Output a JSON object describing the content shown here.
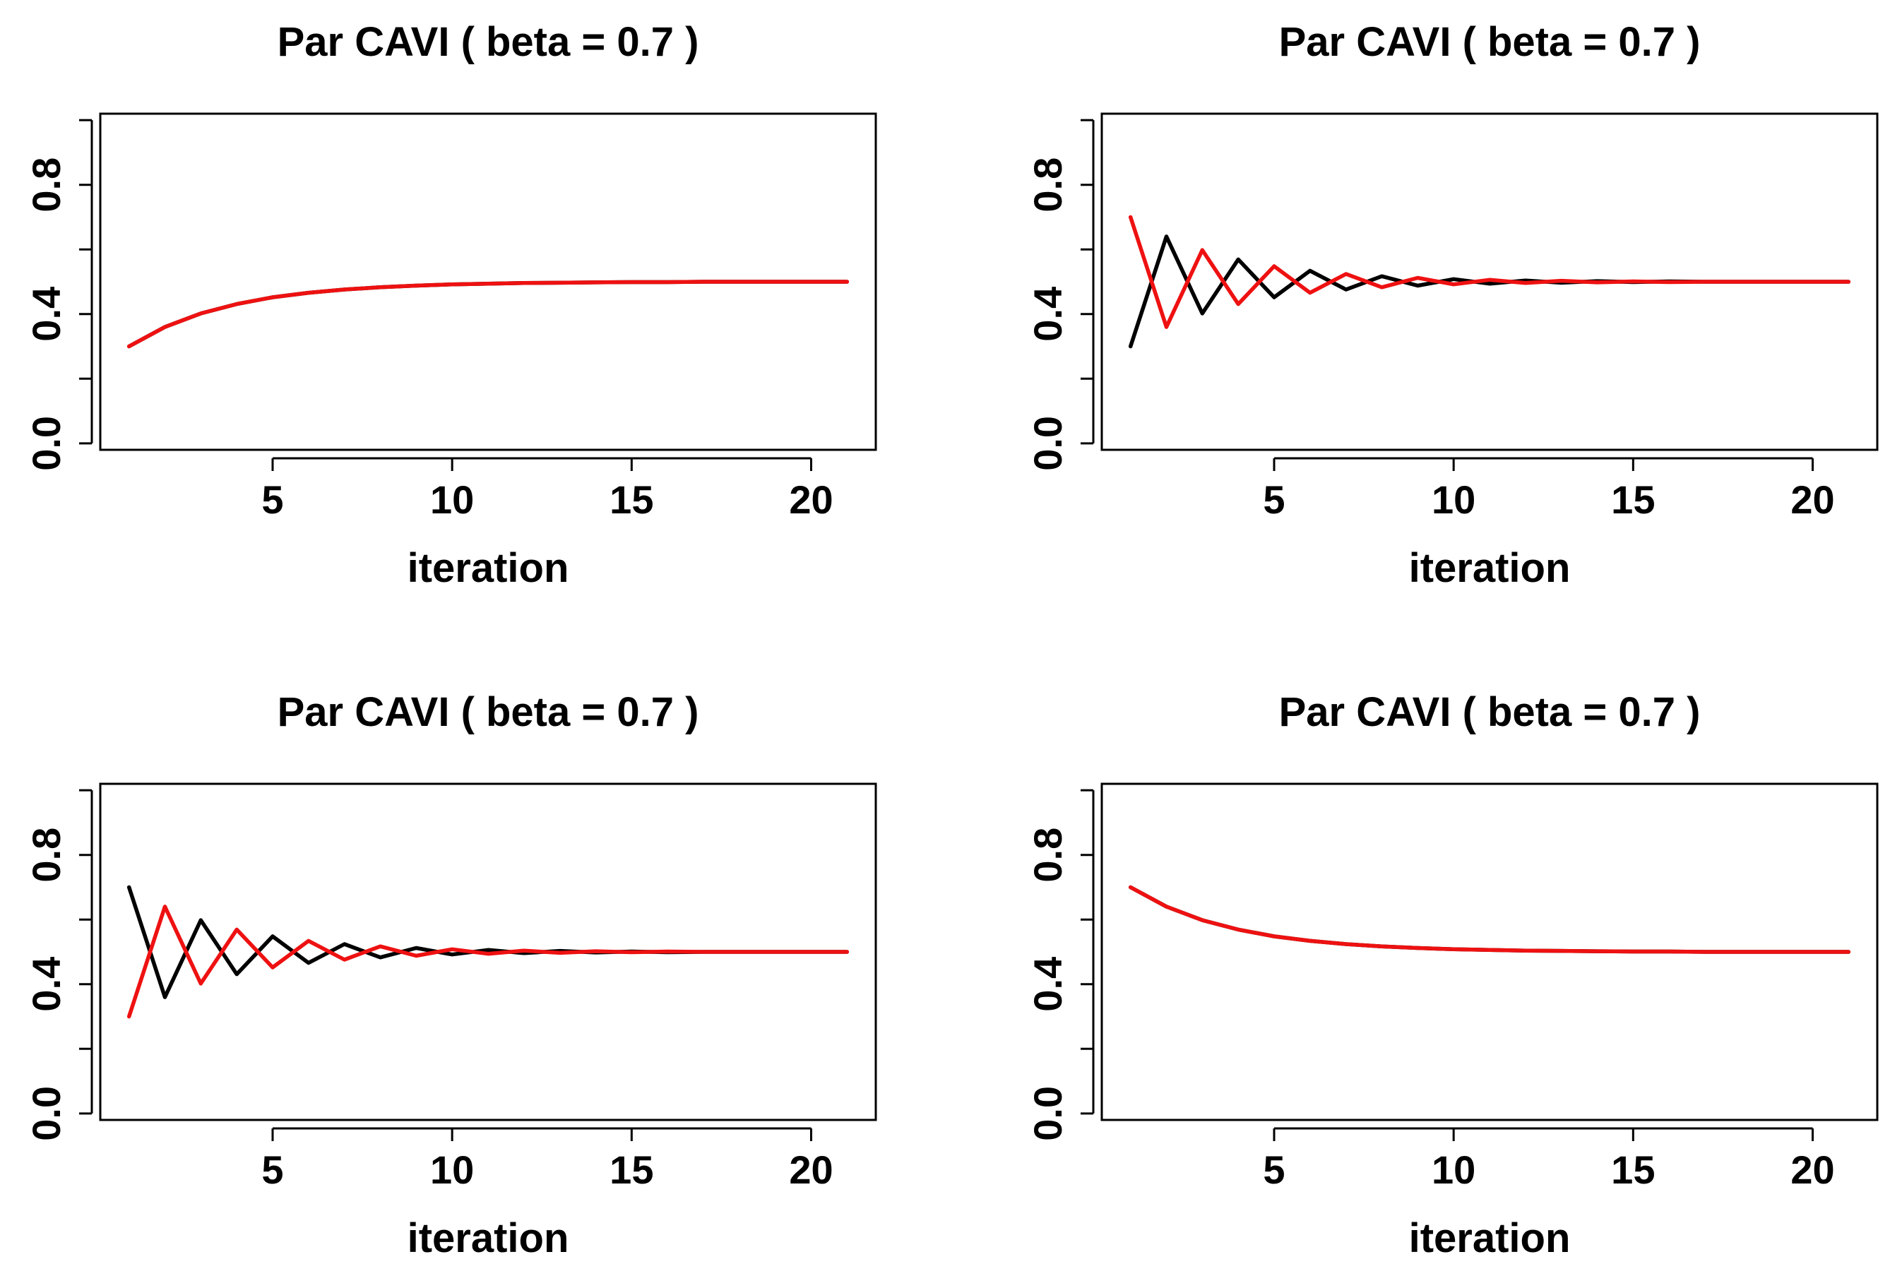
{
  "chart_data": [
    {
      "type": "line",
      "title": "Par CAVI ( beta =  0.7 )",
      "xlabel": "iteration",
      "ylabel": "",
      "xlim": [
        0.2,
        21.8
      ],
      "ylim": [
        -0.02,
        1.02
      ],
      "xticks": [
        5,
        10,
        15,
        20
      ],
      "yticks": [
        0.0,
        0.2,
        0.4,
        0.6,
        0.8,
        1.0
      ],
      "ytick_labels": [
        "0.0",
        "",
        "0.4",
        "",
        "0.8",
        ""
      ],
      "x": [
        1,
        2,
        3,
        4,
        5,
        6,
        7,
        8,
        9,
        10,
        11,
        12,
        13,
        14,
        15,
        16,
        17,
        18,
        19,
        20,
        21
      ],
      "series": [
        {
          "name": "black",
          "color": "#000000",
          "values": [
            0.3,
            0.36,
            0.402,
            0.431,
            0.452,
            0.466,
            0.476,
            0.483,
            0.488,
            0.492,
            0.494,
            0.496,
            0.497,
            0.498,
            0.499,
            0.499,
            0.5,
            0.5,
            0.5,
            0.5,
            0.5
          ]
        },
        {
          "name": "red",
          "color": "#ee1111",
          "values": [
            0.3,
            0.36,
            0.402,
            0.431,
            0.452,
            0.466,
            0.476,
            0.483,
            0.488,
            0.492,
            0.494,
            0.496,
            0.497,
            0.498,
            0.499,
            0.499,
            0.5,
            0.5,
            0.5,
            0.5,
            0.5
          ]
        }
      ]
    },
    {
      "type": "line",
      "title": "Par CAVI ( beta =  0.7 )",
      "xlabel": "iteration",
      "ylabel": "",
      "xlim": [
        0.2,
        21.8
      ],
      "ylim": [
        -0.02,
        1.02
      ],
      "xticks": [
        5,
        10,
        15,
        20
      ],
      "yticks": [
        0.0,
        0.2,
        0.4,
        0.6,
        0.8,
        1.0
      ],
      "ytick_labels": [
        "0.0",
        "",
        "0.4",
        "",
        "0.8",
        ""
      ],
      "x": [
        1,
        2,
        3,
        4,
        5,
        6,
        7,
        8,
        9,
        10,
        11,
        12,
        13,
        14,
        15,
        16,
        17,
        18,
        19,
        20,
        21
      ],
      "series": [
        {
          "name": "black",
          "color": "#000000",
          "values": [
            0.3,
            0.64,
            0.402,
            0.569,
            0.452,
            0.534,
            0.476,
            0.517,
            0.488,
            0.508,
            0.494,
            0.504,
            0.497,
            0.502,
            0.499,
            0.501,
            0.5,
            0.5,
            0.5,
            0.5,
            0.5
          ]
        },
        {
          "name": "red",
          "color": "#ee1111",
          "values": [
            0.7,
            0.36,
            0.598,
            0.431,
            0.548,
            0.466,
            0.524,
            0.483,
            0.512,
            0.492,
            0.506,
            0.496,
            0.503,
            0.498,
            0.501,
            0.499,
            0.5,
            0.5,
            0.5,
            0.5,
            0.5
          ]
        }
      ]
    },
    {
      "type": "line",
      "title": "Par CAVI ( beta =  0.7 )",
      "xlabel": "iteration",
      "ylabel": "",
      "xlim": [
        0.2,
        21.8
      ],
      "ylim": [
        -0.02,
        1.02
      ],
      "xticks": [
        5,
        10,
        15,
        20
      ],
      "yticks": [
        0.0,
        0.2,
        0.4,
        0.6,
        0.8,
        1.0
      ],
      "ytick_labels": [
        "0.0",
        "",
        "0.4",
        "",
        "0.8",
        ""
      ],
      "x": [
        1,
        2,
        3,
        4,
        5,
        6,
        7,
        8,
        9,
        10,
        11,
        12,
        13,
        14,
        15,
        16,
        17,
        18,
        19,
        20,
        21
      ],
      "series": [
        {
          "name": "black",
          "color": "#000000",
          "values": [
            0.7,
            0.36,
            0.598,
            0.431,
            0.548,
            0.466,
            0.524,
            0.483,
            0.512,
            0.492,
            0.506,
            0.496,
            0.503,
            0.498,
            0.501,
            0.499,
            0.5,
            0.5,
            0.5,
            0.5,
            0.5
          ]
        },
        {
          "name": "red",
          "color": "#ee1111",
          "values": [
            0.3,
            0.64,
            0.402,
            0.569,
            0.452,
            0.534,
            0.476,
            0.517,
            0.488,
            0.508,
            0.494,
            0.504,
            0.497,
            0.502,
            0.499,
            0.501,
            0.5,
            0.5,
            0.5,
            0.5,
            0.5
          ]
        }
      ]
    },
    {
      "type": "line",
      "title": "Par CAVI ( beta =  0.7 )",
      "xlabel": "iteration",
      "ylabel": "",
      "xlim": [
        0.2,
        21.8
      ],
      "ylim": [
        -0.02,
        1.02
      ],
      "xticks": [
        5,
        10,
        15,
        20
      ],
      "yticks": [
        0.0,
        0.2,
        0.4,
        0.6,
        0.8,
        1.0
      ],
      "ytick_labels": [
        "0.0",
        "",
        "0.4",
        "",
        "0.8",
        ""
      ],
      "x": [
        1,
        2,
        3,
        4,
        5,
        6,
        7,
        8,
        9,
        10,
        11,
        12,
        13,
        14,
        15,
        16,
        17,
        18,
        19,
        20,
        21
      ],
      "series": [
        {
          "name": "black",
          "color": "#000000",
          "values": [
            0.7,
            0.64,
            0.598,
            0.569,
            0.548,
            0.534,
            0.524,
            0.517,
            0.512,
            0.508,
            0.506,
            0.504,
            0.503,
            0.502,
            0.501,
            0.501,
            0.5,
            0.5,
            0.5,
            0.5,
            0.5
          ]
        },
        {
          "name": "red",
          "color": "#ee1111",
          "values": [
            0.7,
            0.64,
            0.598,
            0.569,
            0.548,
            0.534,
            0.524,
            0.517,
            0.512,
            0.508,
            0.506,
            0.504,
            0.503,
            0.502,
            0.501,
            0.501,
            0.5,
            0.5,
            0.5,
            0.5,
            0.5
          ]
        }
      ]
    }
  ]
}
